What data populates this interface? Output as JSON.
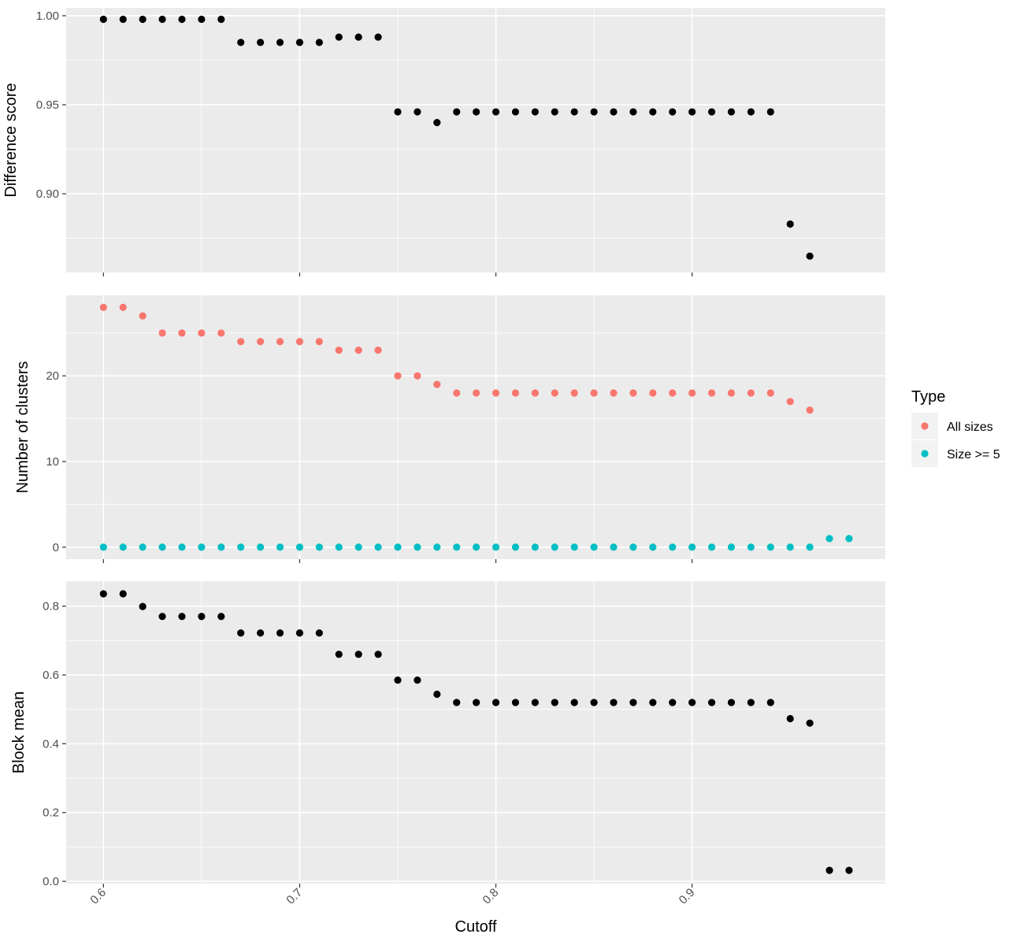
{
  "chart_data": {
    "type": "scatter",
    "x_label": "Cutoff",
    "x_range": [
      0.581,
      0.9985
    ],
    "x_ticks": [
      0.6,
      0.7,
      0.8,
      0.9
    ],
    "x_tick_labels": [
      "0.6",
      "0.7",
      "0.8",
      "0.9"
    ],
    "grid": true,
    "legend": {
      "title": "Type",
      "placement": "right",
      "entries": [
        {
          "label": "All sizes",
          "color": "#F8766D"
        },
        {
          "label": "Size >= 5",
          "color": "#00BFC4"
        }
      ]
    },
    "panels": [
      {
        "id": "difference",
        "ylabel": "Difference score",
        "ylim": [
          0.8558,
          1.0044
        ],
        "y_ticks": [
          0.9,
          0.95,
          1.0
        ],
        "y_tick_labels": [
          "0.90",
          "0.95",
          "1.00"
        ],
        "y_minor": [
          0.875,
          0.925,
          0.975
        ],
        "series": [
          {
            "color": "#000000",
            "x": [
              0.6,
              0.61,
              0.62,
              0.63,
              0.64,
              0.65,
              0.66,
              0.67,
              0.68,
              0.69,
              0.7,
              0.71,
              0.72,
              0.73,
              0.74,
              0.75,
              0.76,
              0.77,
              0.78,
              0.79,
              0.8,
              0.81,
              0.82,
              0.83,
              0.84,
              0.85,
              0.86,
              0.87,
              0.88,
              0.89,
              0.9,
              0.91,
              0.92,
              0.93,
              0.94,
              0.95,
              0.96
            ],
            "y": [
              0.998,
              0.998,
              0.998,
              0.998,
              0.998,
              0.998,
              0.998,
              0.985,
              0.985,
              0.985,
              0.985,
              0.985,
              0.988,
              0.988,
              0.988,
              0.946,
              0.946,
              0.94,
              0.946,
              0.946,
              0.946,
              0.946,
              0.946,
              0.946,
              0.946,
              0.946,
              0.946,
              0.946,
              0.946,
              0.946,
              0.946,
              0.946,
              0.946,
              0.946,
              0.946,
              0.883,
              0.865
            ]
          }
        ]
      },
      {
        "id": "clusters",
        "ylabel": "Number of clusters",
        "ylim": [
          -1.4,
          29.4
        ],
        "y_ticks": [
          0,
          10,
          20
        ],
        "y_tick_labels": [
          "0",
          "10",
          "20"
        ],
        "y_minor": [
          5,
          15,
          25
        ],
        "series": [
          {
            "name": "All sizes",
            "color": "#F8766D",
            "x": [
              0.6,
              0.61,
              0.62,
              0.63,
              0.64,
              0.65,
              0.66,
              0.67,
              0.68,
              0.69,
              0.7,
              0.71,
              0.72,
              0.73,
              0.74,
              0.75,
              0.76,
              0.77,
              0.78,
              0.79,
              0.8,
              0.81,
              0.82,
              0.83,
              0.84,
              0.85,
              0.86,
              0.87,
              0.88,
              0.89,
              0.9,
              0.91,
              0.92,
              0.93,
              0.94,
              0.95,
              0.96
            ],
            "y": [
              28,
              28,
              27,
              25,
              25,
              25,
              25,
              24,
              24,
              24,
              24,
              24,
              23,
              23,
              23,
              20,
              20,
              19,
              18,
              18,
              18,
              18,
              18,
              18,
              18,
              18,
              18,
              18,
              18,
              18,
              18,
              18,
              18,
              18,
              18,
              17,
              16
            ]
          },
          {
            "name": "Size >= 5",
            "color": "#00BFC4",
            "x": [
              0.6,
              0.61,
              0.62,
              0.63,
              0.64,
              0.65,
              0.66,
              0.67,
              0.68,
              0.69,
              0.7,
              0.71,
              0.72,
              0.73,
              0.74,
              0.75,
              0.76,
              0.77,
              0.78,
              0.79,
              0.8,
              0.81,
              0.82,
              0.83,
              0.84,
              0.85,
              0.86,
              0.87,
              0.88,
              0.89,
              0.9,
              0.91,
              0.92,
              0.93,
              0.94,
              0.95,
              0.96,
              0.97,
              0.98
            ],
            "y": [
              0,
              0,
              0,
              0,
              0,
              0,
              0,
              0,
              0,
              0,
              0,
              0,
              0,
              0,
              0,
              0,
              0,
              0,
              0,
              0,
              0,
              0,
              0,
              0,
              0,
              0,
              0,
              0,
              0,
              0,
              0,
              0,
              0,
              0,
              0,
              0,
              0,
              1,
              1
            ]
          }
        ]
      },
      {
        "id": "blockmean",
        "ylabel": "Block mean",
        "ylim": [
          -0.0067,
          0.8725
        ],
        "y_ticks": [
          0.0,
          0.2,
          0.4,
          0.6,
          0.8
        ],
        "y_tick_labels": [
          "0.0",
          "0.2",
          "0.4",
          "0.6",
          "0.8"
        ],
        "y_minor": [
          0.1,
          0.3,
          0.5,
          0.7
        ],
        "series": [
          {
            "color": "#000000",
            "x": [
              0.6,
              0.61,
              0.62,
              0.63,
              0.64,
              0.65,
              0.66,
              0.67,
              0.68,
              0.69,
              0.7,
              0.71,
              0.72,
              0.73,
              0.74,
              0.75,
              0.76,
              0.77,
              0.78,
              0.79,
              0.8,
              0.81,
              0.82,
              0.83,
              0.84,
              0.85,
              0.86,
              0.87,
              0.88,
              0.89,
              0.9,
              0.91,
              0.92,
              0.93,
              0.94,
              0.95,
              0.96,
              0.97,
              0.98
            ],
            "y": [
              0.836,
              0.836,
              0.799,
              0.77,
              0.77,
              0.77,
              0.77,
              0.722,
              0.722,
              0.722,
              0.722,
              0.722,
              0.66,
              0.66,
              0.66,
              0.585,
              0.585,
              0.544,
              0.52,
              0.52,
              0.52,
              0.52,
              0.52,
              0.52,
              0.52,
              0.52,
              0.52,
              0.52,
              0.52,
              0.52,
              0.52,
              0.52,
              0.52,
              0.52,
              0.52,
              0.473,
              0.46,
              0.032,
              0.032
            ]
          }
        ]
      }
    ]
  }
}
